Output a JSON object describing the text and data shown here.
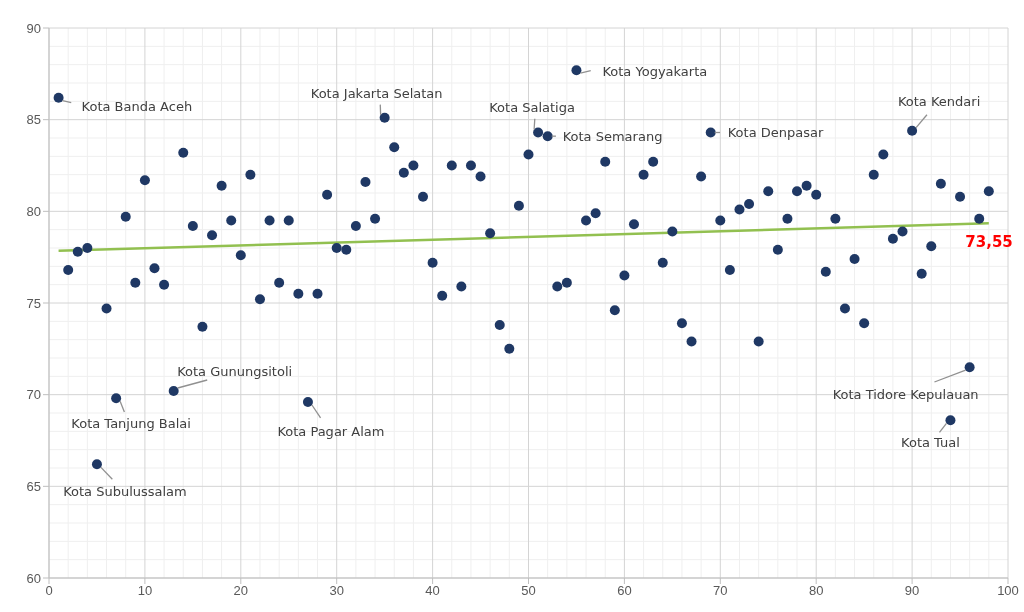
{
  "chart_data": {
    "type": "scatter",
    "xlim": [
      0,
      100
    ],
    "xticks": [
      0,
      10,
      20,
      30,
      40,
      50,
      60,
      70,
      80,
      90,
      100
    ],
    "ylim": [
      60,
      90
    ],
    "yticks": [
      60,
      65,
      70,
      75,
      80,
      85,
      90
    ],
    "grid": true,
    "legend": false,
    "series": [
      {
        "type": "scatter",
        "color": "#1f3864",
        "marker": "circle",
        "x": [
          1,
          2,
          3,
          4,
          5,
          6,
          7,
          8,
          9,
          10,
          11,
          12,
          13,
          14,
          15,
          16,
          17,
          18,
          19,
          20,
          21,
          22,
          23,
          24,
          25,
          26,
          27,
          28,
          29,
          30,
          31,
          32,
          33,
          34,
          35,
          36,
          37,
          38,
          39,
          40,
          41,
          42,
          43,
          44,
          45,
          46,
          47,
          48,
          49,
          50,
          51,
          52,
          53,
          54,
          55,
          56,
          57,
          58,
          59,
          60,
          61,
          62,
          63,
          64,
          65,
          66,
          67,
          68,
          69,
          70,
          71,
          72,
          73,
          74,
          75,
          76,
          77,
          78,
          79,
          80,
          81,
          82,
          83,
          84,
          85,
          86,
          87,
          88,
          89,
          90,
          91,
          92,
          93,
          94,
          95,
          96,
          97,
          98
        ],
        "values": [
          86.2,
          76.8,
          77.8,
          78.0,
          66.2,
          74.7,
          69.8,
          79.7,
          76.1,
          81.7,
          76.9,
          76.0,
          70.2,
          83.2,
          79.2,
          73.7,
          78.7,
          81.4,
          79.5,
          77.6,
          82.0,
          75.2,
          79.5,
          76.1,
          79.5,
          75.5,
          69.6,
          75.5,
          80.9,
          78.0,
          77.9,
          79.2,
          81.6,
          79.6,
          85.1,
          83.5,
          82.1,
          82.5,
          80.8,
          77.2,
          75.4,
          82.5,
          75.9,
          82.5,
          81.9,
          78.8,
          73.8,
          72.5,
          80.3,
          83.1,
          84.3,
          84.1,
          75.9,
          76.1,
          87.7,
          79.5,
          79.9,
          82.7,
          74.6,
          76.5,
          79.3,
          82.0,
          82.7,
          77.2,
          78.9,
          73.9,
          72.9,
          81.9,
          84.3,
          79.5,
          76.8,
          80.1,
          80.4,
          72.9,
          81.1,
          77.9,
          79.6,
          81.1,
          81.4,
          80.9,
          76.7,
          79.6,
          74.7,
          77.4,
          73.9,
          82.0,
          83.1,
          78.5,
          78.9,
          84.4,
          76.6,
          78.1,
          81.5,
          68.6,
          80.8,
          71.5,
          79.6,
          81.1
        ]
      },
      {
        "type": "line",
        "color": "#92c050",
        "x": [
          1,
          98
        ],
        "values": [
          77.85,
          79.35
        ]
      }
    ],
    "annotations": [
      {
        "text": "Kota Banda Aceh",
        "x": 1,
        "y": 86.2
      },
      {
        "text": "Kota Jakarta Selatan",
        "x": 35,
        "y": 85.1
      },
      {
        "text": "Kota Yogyakarta",
        "x": 55,
        "y": 87.7
      },
      {
        "text": "Kota Salatiga",
        "x": 51,
        "y": 84.3
      },
      {
        "text": "Kota Semarang",
        "x": 52,
        "y": 84.1
      },
      {
        "text": "Kota Denpasar",
        "x": 69,
        "y": 84.3
      },
      {
        "text": "Kota Kendari",
        "x": 90,
        "y": 84.4
      },
      {
        "text": "Kota Gunungsitoli",
        "x": 13,
        "y": 70.2
      },
      {
        "text": "Kota Tanjung Balai",
        "x": 7,
        "y": 69.8
      },
      {
        "text": "Kota Subulussalam",
        "x": 5,
        "y": 66.2
      },
      {
        "text": "Kota Pagar Alam",
        "x": 27,
        "y": 69.6
      },
      {
        "text": "Kota Tidore Kepulauan",
        "x": 96,
        "y": 71.5
      },
      {
        "text": "Kota Tual",
        "x": 94,
        "y": 68.6
      },
      {
        "text": "73,55",
        "x": 98,
        "y": 79.35
      }
    ]
  }
}
